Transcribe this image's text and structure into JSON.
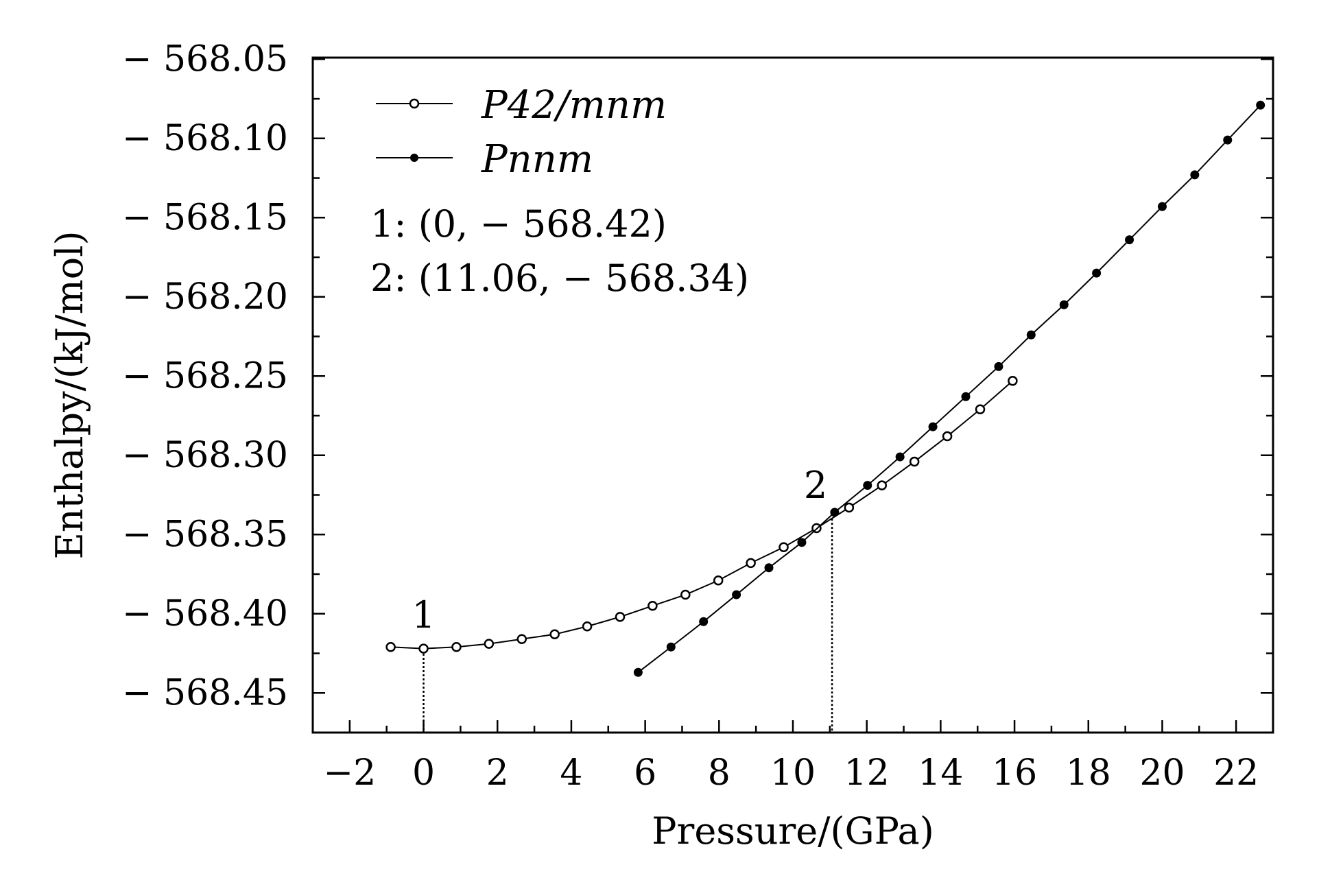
{
  "chart_data": {
    "type": "line",
    "title": "",
    "xlabel": "Pressure/(GPa)",
    "ylabel": "Enthalpy/(kJ/mol)",
    "xlim": [
      -3,
      23
    ],
    "ylim": [
      -568.475,
      -568.049
    ],
    "xticks": [
      -2,
      0,
      2,
      4,
      6,
      8,
      10,
      12,
      14,
      16,
      18,
      20,
      22
    ],
    "xtick_labels": [
      "−2",
      "0",
      "2",
      "4",
      "6",
      "8",
      "10",
      "12",
      "14",
      "16",
      "18",
      "20",
      "22"
    ],
    "yticks": [
      -568.05,
      -568.1,
      -568.15,
      -568.2,
      -568.25,
      -568.3,
      -568.35,
      -568.4,
      -568.45
    ],
    "ytick_labels": [
      "− 568.05",
      "− 568.10",
      "− 568.15",
      "− 568.20",
      "− 568.25",
      "− 568.30",
      "− 568.35",
      "− 568.40",
      "− 568.45"
    ],
    "grid": false,
    "legend_position": "top-left",
    "series": [
      {
        "name": "P42/mnm",
        "marker": "open-circle",
        "x": [
          -0.89,
          0,
          0.89,
          1.77,
          2.66,
          3.55,
          4.43,
          5.32,
          6.2,
          7.09,
          7.98,
          8.86,
          9.75,
          10.64,
          11.52,
          12.41,
          13.29,
          14.18,
          15.07,
          15.95
        ],
        "y": [
          -568.421,
          -568.422,
          -568.421,
          -568.419,
          -568.416,
          -568.413,
          -568.408,
          -568.402,
          -568.395,
          -568.388,
          -568.379,
          -568.368,
          -568.358,
          -568.346,
          -568.333,
          -568.319,
          -568.304,
          -568.288,
          -568.271,
          -568.253
        ]
      },
      {
        "name": "Pnnm",
        "marker": "filled-circle",
        "x": [
          5.81,
          6.7,
          7.58,
          8.47,
          9.35,
          10.24,
          11.13,
          12.02,
          12.9,
          13.79,
          14.68,
          15.57,
          16.45,
          17.34,
          18.22,
          19.11,
          20.0,
          20.88,
          21.77,
          22.66
        ],
        "y": [
          -568.437,
          -568.421,
          -568.405,
          -568.388,
          -568.371,
          -568.355,
          -568.336,
          -568.319,
          -568.301,
          -568.282,
          -568.263,
          -568.244,
          -568.224,
          -568.205,
          -568.185,
          -568.164,
          -568.143,
          -568.123,
          -568.101,
          -568.079
        ]
      }
    ],
    "annotations": [
      {
        "label": "1",
        "x": 0,
        "y": -568.42
      },
      {
        "label": "2",
        "x": 11.06,
        "y": -568.34
      }
    ],
    "annotation_text": [
      "1: (0, − 568.42)",
      "2: (11.06, − 568.34)"
    ]
  }
}
